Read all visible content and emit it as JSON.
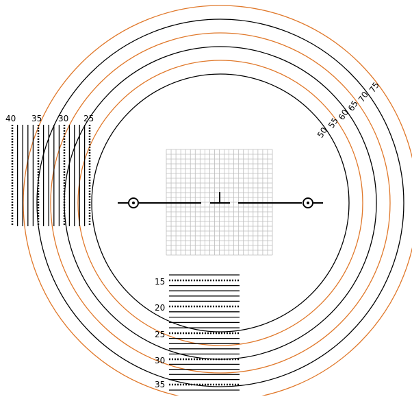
{
  "colors": {
    "black_ring": "#000000",
    "orange_ring": "#e0782a",
    "grid": "#bdbdbd",
    "line": "#000000"
  },
  "rings": [
    {
      "label": "50",
      "color": "black"
    },
    {
      "label": "55",
      "color": "orange"
    },
    {
      "label": "60",
      "color": "black"
    },
    {
      "label": "65",
      "color": "orange"
    },
    {
      "label": "70",
      "color": "black"
    },
    {
      "label": "75",
      "color": "orange"
    }
  ],
  "vertical_scale": {
    "labels": [
      "40",
      "35",
      "30",
      "25"
    ]
  },
  "horizontal_scale": {
    "labels": [
      "15",
      "20",
      "25",
      "30",
      "35"
    ]
  },
  "icons": [
    "target-left-icon",
    "target-right-icon",
    "center-mark-icon"
  ]
}
